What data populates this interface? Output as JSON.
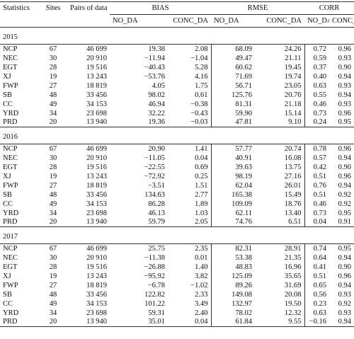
{
  "table": {
    "header": {
      "statistics": "Statistics",
      "sites": "Sites",
      "pairs": "Pairs of data",
      "groups": [
        "BIAS",
        "RMSE",
        "CORR"
      ],
      "subcolumns": [
        "NO_DA",
        "CONC_DA",
        "NO_DA",
        "CONC_DA",
        "NO_DA",
        "CONC_DA"
      ]
    },
    "sections": [
      {
        "year": "2015",
        "rows": [
          [
            "NCP",
            "67",
            "46 699",
            "19.38",
            "2.08",
            "68.09",
            "24.26",
            "0.72",
            "0.96"
          ],
          [
            "NEC",
            "30",
            "20 910",
            "−11.94",
            "−1.04",
            "49.47",
            "21.11",
            "0.59",
            "0.93"
          ],
          [
            "EGT",
            "28",
            "19 516",
            "−40.43",
            "5.28",
            "60.62",
            "19.45",
            "0.37",
            "0.90"
          ],
          [
            "XJ",
            "19",
            "13 243",
            "−53.76",
            "4.16",
            "71.69",
            "19.74",
            "0.40",
            "0.94"
          ],
          [
            "FWP",
            "27",
            "18 819",
            "4.05",
            "1.75",
            "56.71",
            "23.05",
            "0.63",
            "0.93"
          ],
          [
            "SB",
            "48",
            "33 456",
            "98.02",
            "0.61",
            "125.76",
            "20.76",
            "0.55",
            "0.94"
          ],
          [
            "CC",
            "49",
            "34 153",
            "46.94",
            "−0.38",
            "81.31",
            "21.18",
            "0.46",
            "0.93"
          ],
          [
            "YRD",
            "34",
            "23 698",
            "32.22",
            "−0.43",
            "59.90",
            "15.14",
            "0.73",
            "0.96"
          ],
          [
            "PRD",
            "20",
            "13 940",
            "19.36",
            "−0.03",
            "47.81",
            "9.10",
            "0.24",
            "0.95"
          ]
        ]
      },
      {
        "year": "2016",
        "rows": [
          [
            "NCP",
            "67",
            "46 699",
            "20.90",
            "1.41",
            "57.77",
            "20.74",
            "0.78",
            "0.96"
          ],
          [
            "NEC",
            "30",
            "20 910",
            "−11.05",
            "0.04",
            "40.91",
            "16.08",
            "0.57",
            "0.94"
          ],
          [
            "EGT",
            "28",
            "19 516",
            "−22.55",
            "0.69",
            "39.63",
            "13.75",
            "0.42",
            "0.90"
          ],
          [
            "XJ",
            "19",
            "13 243",
            "−72.92",
            "0.25",
            "98.19",
            "27.16",
            "0.51",
            "0.96"
          ],
          [
            "FWP",
            "27",
            "18 819",
            "−3.51",
            "1.51",
            "62.04",
            "26.01",
            "0.76",
            "0.94"
          ],
          [
            "SB",
            "48",
            "33 456",
            "134.63",
            "2.77",
            "165.38",
            "15.49",
            "0.51",
            "0.92"
          ],
          [
            "CC",
            "49",
            "34 153",
            "86.28",
            "1.89",
            "109.09",
            "18.76",
            "0.46",
            "0.92"
          ],
          [
            "YRD",
            "34",
            "23 698",
            "46.13",
            "1.03",
            "62.11",
            "13.40",
            "0.73",
            "0.95"
          ],
          [
            "PRD",
            "20",
            "13 940",
            "59.79",
            "2.05",
            "74.76",
            "6.51",
            "0.04",
            "0.91"
          ]
        ]
      },
      {
        "year": "2017",
        "rows": [
          [
            "NCP",
            "67",
            "46 699",
            "25.75",
            "2.35",
            "82.31",
            "28.91",
            "0.74",
            "0.95"
          ],
          [
            "NEC",
            "30",
            "20 910",
            "−11.38",
            "0.01",
            "53.38",
            "21.35",
            "0.64",
            "0.94"
          ],
          [
            "EGT",
            "28",
            "19 516",
            "−26.88",
            "1.40",
            "48.83",
            "16.96",
            "0.41",
            "0.90"
          ],
          [
            "XJ",
            "19",
            "13 243",
            "−95.92",
            "3.82",
            "125.09",
            "35.65",
            "0.51",
            "0.96"
          ],
          [
            "FWP",
            "27",
            "18 819",
            "−6.78",
            "−1.02",
            "89.26",
            "31.69",
            "0.65",
            "0.94"
          ],
          [
            "SB",
            "48",
            "33 456",
            "122.82",
            "2.33",
            "149.08",
            "20.08",
            "0.56",
            "0.93"
          ],
          [
            "CC",
            "49",
            "34 153",
            "101.22",
            "3.49",
            "132.97",
            "19.50",
            "0.23",
            "0.92"
          ],
          [
            "YRD",
            "34",
            "23 698",
            "59.31",
            "2.40",
            "78.02",
            "12.32",
            "0.63",
            "0.93"
          ],
          [
            "PRD",
            "20",
            "13 940",
            "35.01",
            "0.04",
            "61.84",
            "9.55",
            "−0.16",
            "0.94"
          ]
        ]
      }
    ]
  }
}
